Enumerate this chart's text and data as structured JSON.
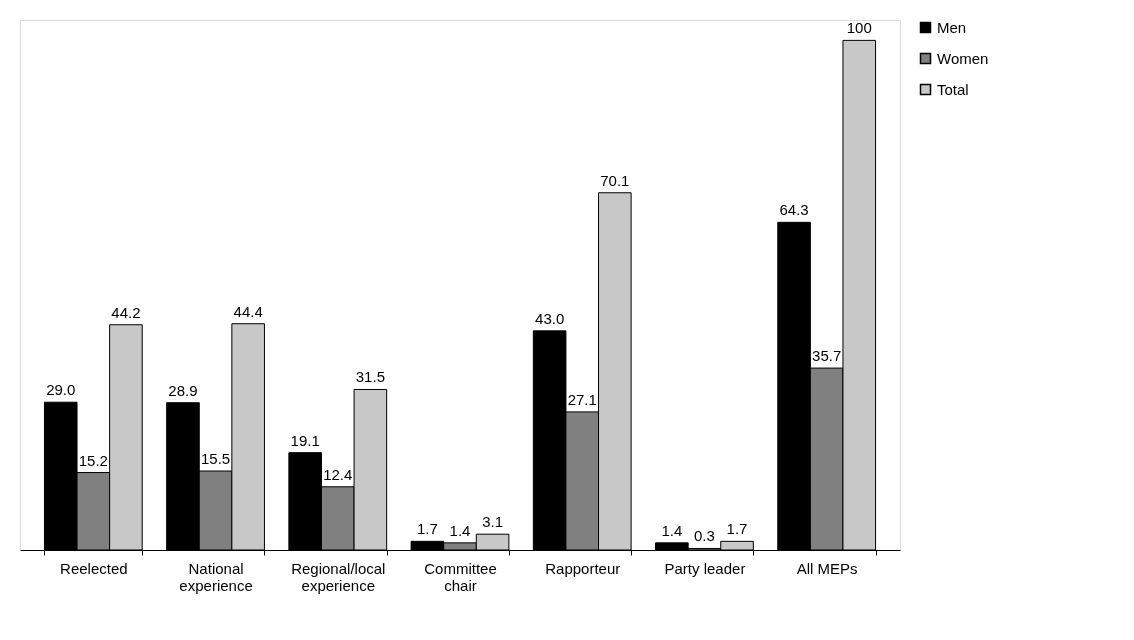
{
  "chart_data": {
    "type": "bar",
    "categories": [
      "Reelected",
      "National experience",
      "Regional/local experience",
      "Committee chair",
      "Rapporteur",
      "Party leader",
      "All MEPs"
    ],
    "series": [
      {
        "name": "Men",
        "color": "#000000",
        "values": [
          29.0,
          28.9,
          19.1,
          1.7,
          43.0,
          1.4,
          64.3
        ],
        "value_labels": [
          "29.0",
          "28.9",
          "19.1",
          "1.7",
          "43.0",
          "1.4",
          "64.3"
        ]
      },
      {
        "name": "Women",
        "color": "#808080",
        "values": [
          15.2,
          15.5,
          12.4,
          1.4,
          27.1,
          0.3,
          35.7
        ],
        "value_labels": [
          "15.2",
          "15.5",
          "12.4",
          "1.4",
          "27.1",
          "0.3",
          "35.7"
        ]
      },
      {
        "name": "Total",
        "color": "#c8c8c8",
        "values": [
          44.2,
          44.4,
          31.5,
          3.1,
          70.1,
          1.7,
          100
        ],
        "value_labels": [
          "44.2",
          "44.4",
          "31.5",
          "3.1",
          "70.1",
          "1.7",
          "100"
        ]
      }
    ],
    "legend": "right",
    "grid": false
  }
}
